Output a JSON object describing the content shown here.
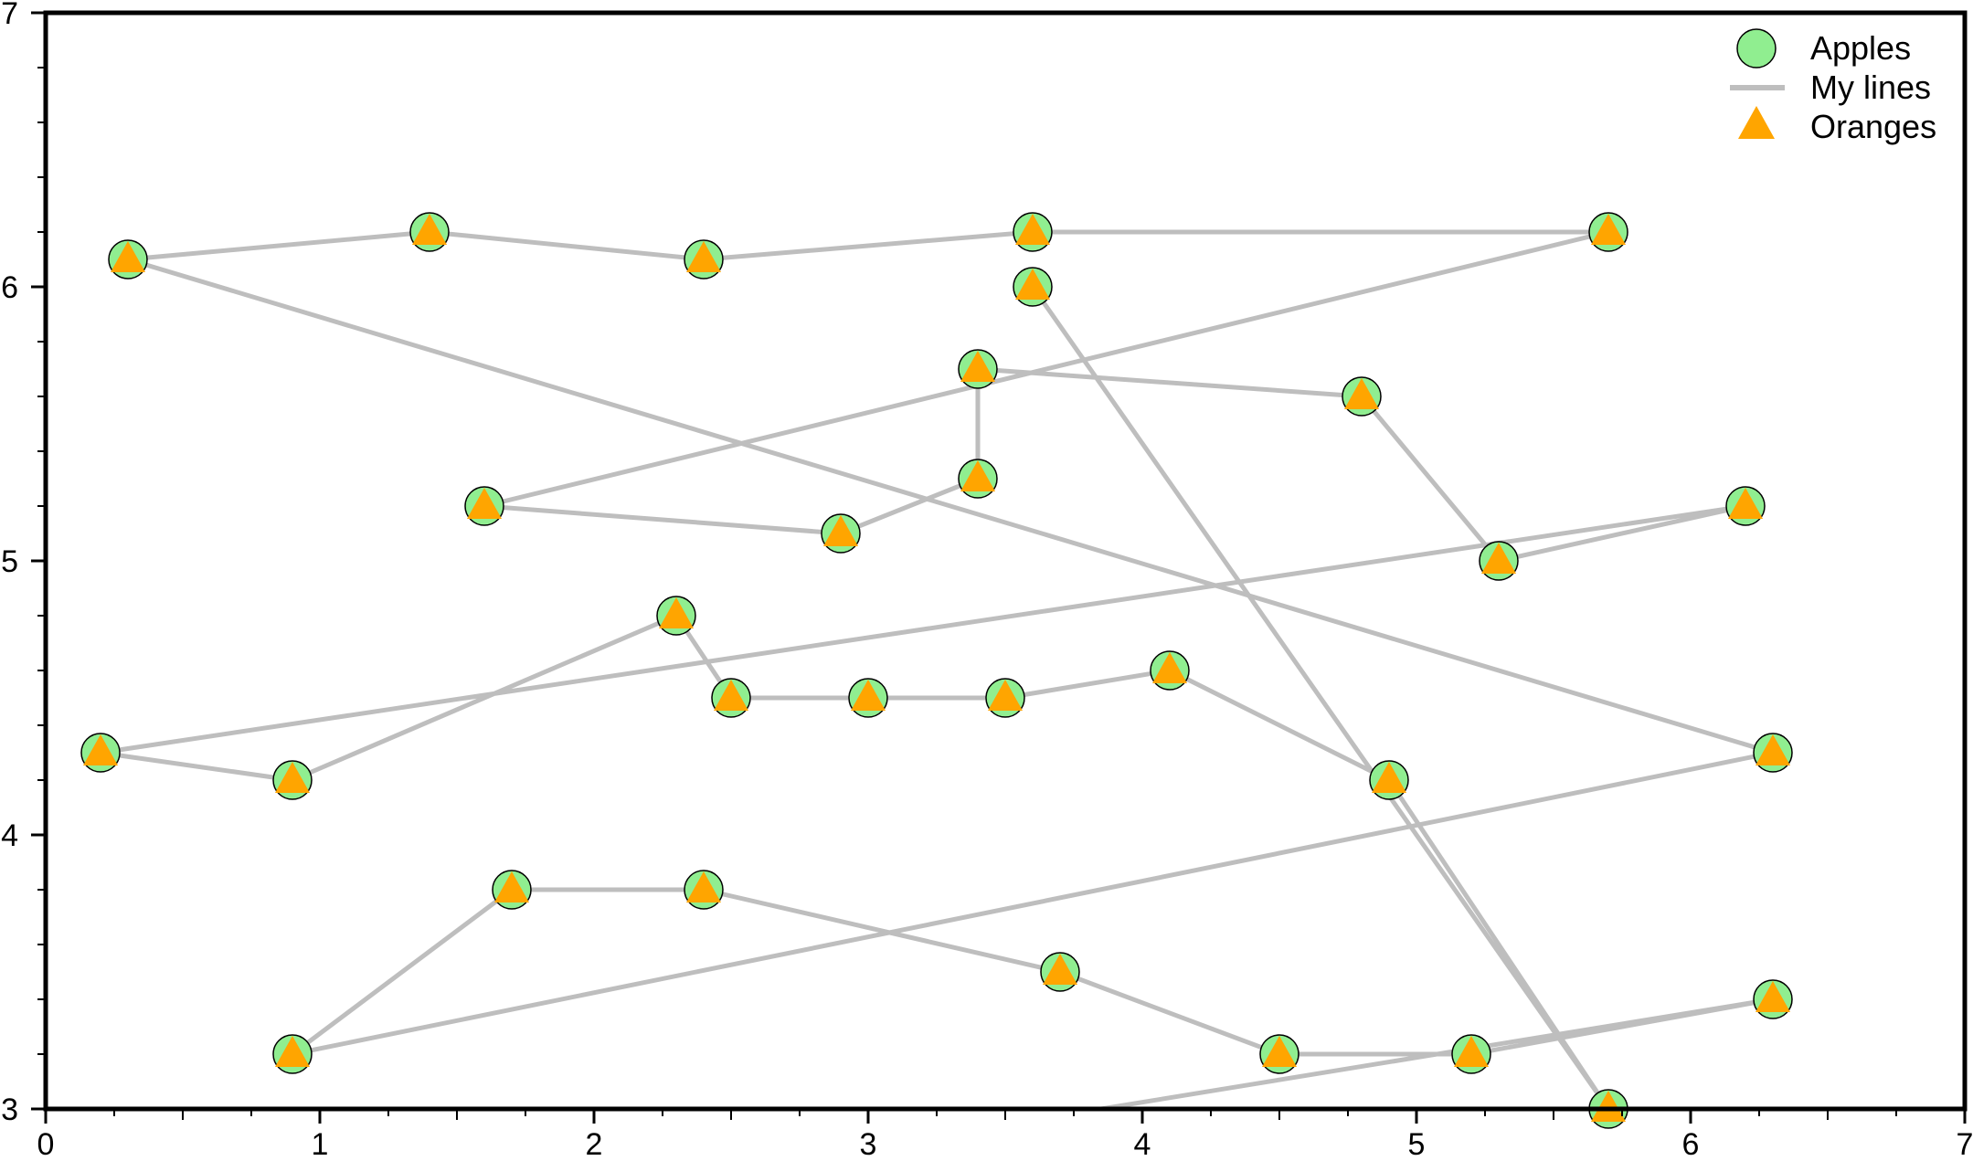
{
  "chart_data": {
    "type": "scatter",
    "title": "",
    "xlabel": "",
    "ylabel": "",
    "xlim": [
      0,
      7
    ],
    "ylim": [
      3,
      7
    ],
    "x_ticks": [
      "0",
      "1",
      "2",
      "3",
      "4",
      "5",
      "6",
      "7"
    ],
    "y_ticks": [
      "3",
      "4",
      "5",
      "6",
      "7"
    ],
    "grid": false,
    "legend_position": "top-right",
    "points": [
      [
        3.6,
        6.0
      ],
      [
        5.7,
        3.0
      ],
      [
        4.9,
        4.2
      ],
      [
        4.1,
        4.6
      ],
      [
        3.5,
        4.5
      ],
      [
        3.0,
        4.5
      ],
      [
        2.5,
        4.5
      ],
      [
        2.3,
        4.8
      ],
      [
        0.9,
        4.2
      ],
      [
        0.2,
        4.3
      ],
      [
        6.2,
        5.2
      ],
      [
        5.3,
        5.0
      ],
      [
        4.8,
        5.6
      ],
      [
        3.4,
        5.7
      ],
      [
        3.4,
        5.3
      ],
      [
        2.9,
        5.1
      ],
      [
        1.6,
        5.2
      ],
      [
        5.7,
        6.2
      ],
      [
        3.6,
        6.2
      ],
      [
        2.4,
        6.1
      ],
      [
        1.4,
        6.2
      ],
      [
        0.3,
        6.1
      ],
      [
        6.3,
        4.3
      ],
      [
        0.9,
        3.2
      ],
      [
        1.7,
        3.8
      ],
      [
        2.4,
        3.8
      ],
      [
        3.7,
        3.5
      ],
      [
        4.5,
        3.2
      ],
      [
        5.2,
        3.2
      ],
      [
        6.3,
        3.4
      ],
      [
        3.85,
        3.0
      ]
    ],
    "series": [
      {
        "name": "Apples",
        "marker": "circle",
        "color": "#90ee90",
        "edge_color": "#000000"
      },
      {
        "name": "My lines",
        "marker": "line",
        "color": "#bebebe"
      },
      {
        "name": "Oranges",
        "marker": "triangle",
        "color": "#ffa500"
      }
    ]
  }
}
